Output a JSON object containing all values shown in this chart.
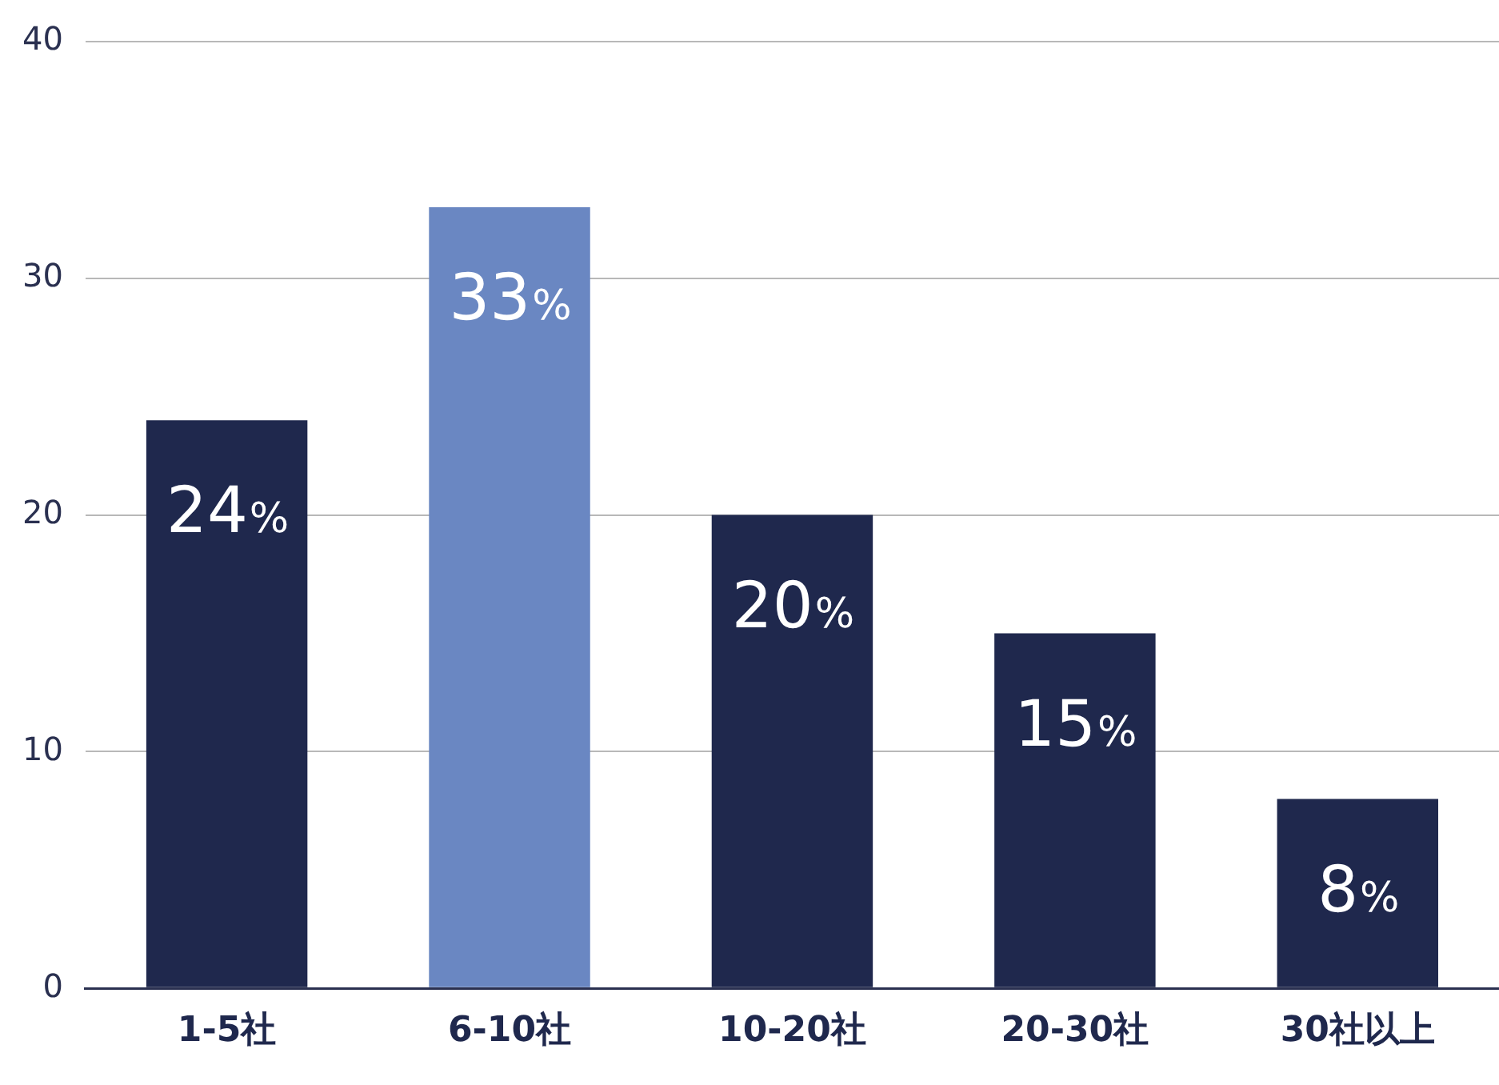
{
  "chart_data": {
    "type": "bar",
    "categories": [
      "1-5社",
      "6-10社",
      "10-20社",
      "20-30社",
      "30社以上"
    ],
    "values": [
      24,
      33,
      20,
      15,
      8
    ],
    "colors": [
      "#1f284d",
      "#6a87c2",
      "#1f284d",
      "#1f284d",
      "#1f284d"
    ],
    "value_labels": [
      "24%",
      "33%",
      "20%",
      "15%",
      "8%"
    ],
    "ylim": [
      0,
      40
    ],
    "yticks": [
      0,
      10,
      20,
      30,
      40
    ],
    "grid": "y",
    "legend": false
  }
}
